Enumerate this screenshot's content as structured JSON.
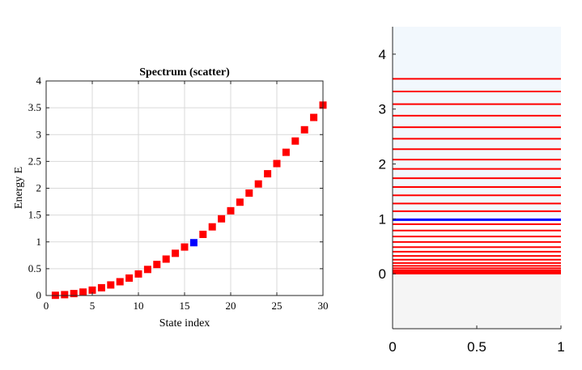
{
  "colors": {
    "marker_default": "#ff0000",
    "marker_highlight": "#0000ff",
    "grid": "#d9d9d9",
    "axes": "#262626",
    "levels_bg_top": "#f2f8fd",
    "levels_bg_bottom": "#f5f5f5"
  },
  "chart_data": [
    {
      "type": "scatter",
      "title": "Spectrum (scatter)",
      "xlabel": "State index",
      "ylabel": "Energy E",
      "xlim": [
        0,
        30
      ],
      "ylim": [
        0,
        4
      ],
      "xticks": [
        "0",
        "5",
        "10",
        "15",
        "20",
        "25",
        "30"
      ],
      "yticks": [
        "0",
        "0.5",
        "1",
        "1.5",
        "2",
        "2.5",
        "3",
        "3.5",
        "4"
      ],
      "grid": true,
      "marker": "square",
      "highlight_index": 16,
      "x": [
        1,
        2,
        3,
        4,
        5,
        6,
        7,
        8,
        9,
        10,
        11,
        12,
        13,
        14,
        15,
        16,
        17,
        18,
        19,
        20,
        21,
        22,
        23,
        24,
        25,
        26,
        27,
        28,
        29,
        30
      ],
      "y": [
        0.004,
        0.016,
        0.036,
        0.064,
        0.1,
        0.145,
        0.197,
        0.257,
        0.325,
        0.402,
        0.486,
        0.579,
        0.679,
        0.787,
        0.904,
        0.985,
        1.14,
        1.28,
        1.43,
        1.58,
        1.74,
        1.91,
        2.08,
        2.27,
        2.46,
        2.67,
        2.88,
        3.09,
        3.32,
        3.55
      ]
    },
    {
      "type": "levels",
      "xlim": [
        0,
        1
      ],
      "ylim": [
        -1,
        4.5
      ],
      "xticks": [
        "0",
        "0.5",
        "1"
      ],
      "yticks": [
        "0",
        "1",
        "2",
        "3",
        "4"
      ],
      "highlight_index": 16,
      "levels": [
        0.004,
        0.016,
        0.036,
        0.064,
        0.1,
        0.145,
        0.197,
        0.257,
        0.325,
        0.402,
        0.486,
        0.579,
        0.679,
        0.787,
        0.904,
        0.985,
        1.14,
        1.28,
        1.43,
        1.58,
        1.74,
        1.91,
        2.08,
        2.27,
        2.46,
        2.67,
        2.88,
        3.09,
        3.32,
        3.55
      ]
    }
  ]
}
